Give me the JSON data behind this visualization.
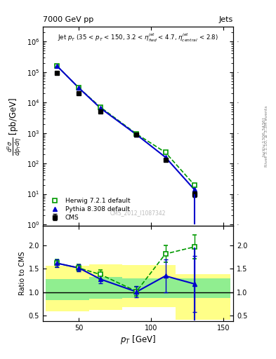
{
  "title_left": "7000 GeV pp",
  "title_right": "Jets",
  "watermark": "CMS_2012_I1087342",
  "ylabel_main": "$\\frac{d^2\\sigma}{dp_T d\\eta}$ [pb/GeV]",
  "ylabel_ratio": "Ratio to CMS",
  "xlabel": "$p_T$ [GeV]",
  "cms_pt": [
    35,
    50,
    65,
    90,
    110,
    130
  ],
  "cms_y": [
    95000.0,
    20000.0,
    5000,
    900,
    130,
    10
  ],
  "cms_yerr_lo": [
    3000,
    1000,
    300,
    60,
    12,
    2
  ],
  "cms_yerr_hi": [
    3000,
    1000,
    300,
    60,
    12,
    2
  ],
  "herwig_pt": [
    35,
    50,
    65,
    90,
    110,
    130
  ],
  "herwig_y": [
    155000.0,
    30000.0,
    7000,
    930,
    230,
    20
  ],
  "pythia_pt": [
    35,
    50,
    65,
    90,
    110,
    130
  ],
  "pythia_y": [
    155000.0,
    30000.0,
    6500,
    880,
    160,
    14
  ],
  "ratio_herwig_pt": [
    35,
    50,
    65,
    90,
    110,
    130
  ],
  "ratio_herwig": [
    1.62,
    1.52,
    1.38,
    1.02,
    1.82,
    1.97
  ],
  "ratio_herwig_elo": [
    0.08,
    0.08,
    0.09,
    0.1,
    0.18,
    0.25
  ],
  "ratio_herwig_ehi": [
    0.08,
    0.08,
    0.09,
    0.1,
    0.18,
    0.25
  ],
  "ratio_pythia_pt": [
    35,
    50,
    65,
    90,
    110,
    130
  ],
  "ratio_pythia": [
    1.62,
    1.52,
    1.28,
    1.01,
    1.35,
    1.18
  ],
  "ratio_pythia_elo": [
    0.08,
    0.08,
    0.09,
    0.12,
    0.35,
    0.6
  ],
  "ratio_pythia_ehi": [
    0.08,
    0.08,
    0.09,
    0.12,
    0.35,
    0.6
  ],
  "band_edges": [
    27,
    57,
    80,
    117,
    155
  ],
  "band_green_lo": [
    0.83,
    0.86,
    0.88,
    0.88
  ],
  "band_green_hi": [
    1.28,
    1.32,
    1.3,
    1.3
  ],
  "band_yellow_lo": [
    0.6,
    0.63,
    0.68,
    0.42
  ],
  "band_yellow_hi": [
    1.56,
    1.6,
    1.58,
    1.38
  ],
  "cms_color": "#000000",
  "herwig_color": "#009900",
  "pythia_color": "#0000cc",
  "band_green_color": "#90ee90",
  "band_yellow_color": "#ffff88",
  "xlim": [
    25,
    157
  ],
  "ylim_main_lo": 0.9,
  "ylim_main_hi": 3000000,
  "ylim_ratio_lo": 0.38,
  "ylim_ratio_hi": 2.42,
  "ratio_yticks": [
    0.5,
    1.0,
    1.5,
    2.0
  ],
  "xticks": [
    50,
    100,
    150
  ],
  "fig_width": 3.93,
  "fig_height": 5.12,
  "dpi": 100
}
